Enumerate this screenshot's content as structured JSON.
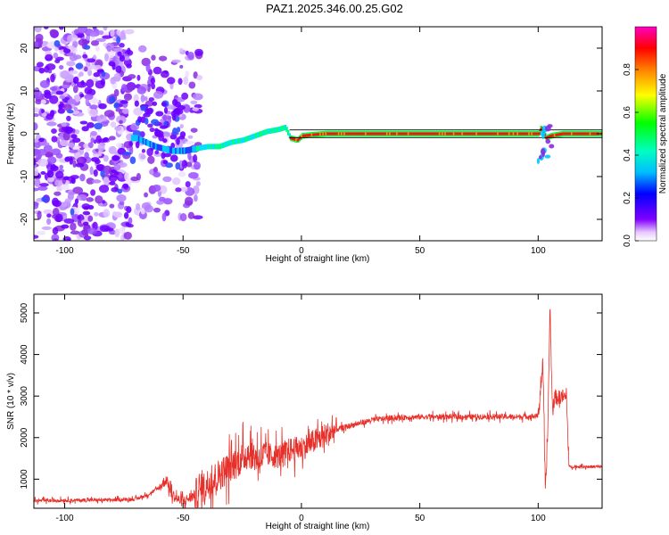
{
  "title": "PAZ1.2025.346.00.25.G02",
  "chart_data": [
    {
      "type": "heatmap",
      "title": "PAZ1.2025.346.00.25.G02",
      "xlabel": "Height of straight line (km)",
      "ylabel": "Frequency (Hz)",
      "xlim": [
        -113,
        127
      ],
      "ylim": [
        -25,
        25
      ],
      "x_ticks": [
        -100,
        -50,
        0,
        50,
        100
      ],
      "x_tick_labels": [
        "-100",
        "-50",
        "0",
        "50",
        "100"
      ],
      "y_ticks": [
        -20,
        -10,
        0,
        10,
        20
      ],
      "y_tick_labels": [
        "-20",
        "-10",
        "0",
        "10",
        "20"
      ],
      "colorbar": {
        "label": "Normalized spectral amplitude",
        "ticks": [
          0.0,
          0.2,
          0.4,
          0.6,
          0.8
        ],
        "tick_labels": [
          "0.0",
          "0.2",
          "0.4",
          "0.6",
          "0.8"
        ],
        "colors": [
          "#ffffff",
          "#8000ff",
          "#0000ff",
          "#00ffff",
          "#00ff00",
          "#ffff00",
          "#ff8000",
          "#ff0000",
          "#ff00c0"
        ]
      },
      "ridge": {
        "x": [
          -70,
          -62,
          -55,
          -50,
          -45,
          -40,
          -35,
          -30,
          -25,
          -20,
          -15,
          -10,
          -7,
          -5,
          -2,
          0,
          5,
          10,
          20,
          50,
          100,
          101,
          103,
          105,
          110,
          127
        ],
        "freq": [
          -1,
          -3,
          -4,
          -4,
          -3.5,
          -3,
          -3,
          -2,
          -1.5,
          -0.5,
          0.5,
          1,
          1.5,
          -1,
          -1.5,
          -0.5,
          -0.2,
          0,
          0,
          0,
          0,
          1.5,
          -1,
          -0.5,
          0,
          0
        ]
      }
    },
    {
      "type": "line",
      "xlabel": "Height of straight line (km)",
      "ylabel": "SNR (10 * v/v)",
      "xlim": [
        -113,
        127
      ],
      "ylim": [
        300,
        5450
      ],
      "x_ticks": [
        -100,
        -50,
        0,
        50,
        100
      ],
      "x_tick_labels": [
        "-100",
        "-50",
        "0",
        "50",
        "100"
      ],
      "y_ticks": [
        1000,
        2000,
        3000,
        4000,
        5000
      ],
      "y_tick_labels": [
        "1000",
        "2000",
        "3000",
        "4000",
        "5000"
      ],
      "series": [
        {
          "name": "SNR",
          "color": "#e8302a",
          "x": [
            -113,
            -100,
            -80,
            -70,
            -65,
            -60,
            -57,
            -55,
            -52,
            -50,
            -45,
            -40,
            -35,
            -30,
            -25,
            -22,
            -18,
            -15,
            -10,
            -5,
            0,
            5,
            10,
            15,
            20,
            25,
            30,
            40,
            50,
            60,
            70,
            80,
            90,
            100,
            102,
            103,
            104,
            105,
            106,
            107,
            108,
            110,
            112,
            113,
            120,
            127
          ],
          "y": [
            480,
            490,
            500,
            520,
            620,
            800,
            1000,
            650,
            500,
            460,
            620,
            860,
            1100,
            1300,
            1500,
            1650,
            1480,
            1600,
            1550,
            1700,
            1750,
            1900,
            2050,
            2200,
            2280,
            2350,
            2430,
            2480,
            2500,
            2500,
            2500,
            2510,
            2500,
            2520,
            3800,
            650,
            2000,
            5200,
            2600,
            3000,
            2950,
            3000,
            2950,
            1300,
            1300,
            1300
          ]
        }
      ]
    }
  ]
}
